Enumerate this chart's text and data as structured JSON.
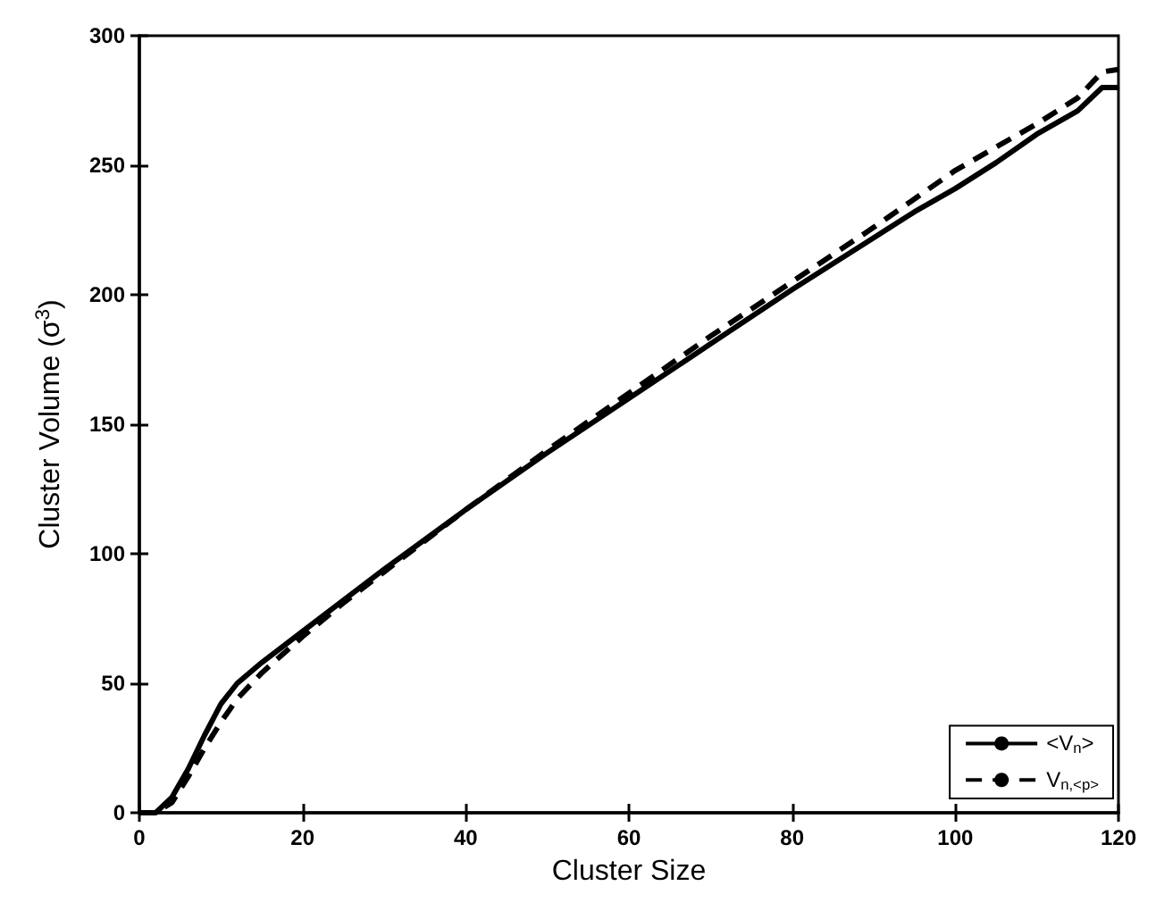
{
  "chart_data": {
    "type": "line",
    "xlabel": "Cluster Size",
    "ylabel": "Cluster Volume (σ$^{3}$)",
    "xlim": [
      0,
      120
    ],
    "xticks": [
      0,
      20,
      40,
      60,
      80,
      100,
      120
    ],
    "ylim": [
      0,
      300
    ],
    "yticks": [
      0,
      50,
      100,
      150,
      200,
      250,
      300
    ],
    "grid": false,
    "legend": "bottom right",
    "marker": "none",
    "series": [
      {
        "name": "<V$_{n}$>",
        "color": "#000000",
        "line_style": "solid",
        "x": [
          0,
          2,
          4,
          6,
          8,
          10,
          12,
          15,
          20,
          25,
          30,
          40,
          50,
          60,
          70,
          80,
          90,
          95,
          100,
          105,
          110,
          115,
          118,
          120
        ],
        "values": [
          0,
          0,
          6,
          17,
          30,
          42,
          50,
          58,
          70,
          82,
          94,
          117,
          139,
          160,
          181,
          202,
          222,
          232,
          241,
          251,
          262,
          271,
          280,
          280
        ]
      },
      {
        "name": "V$_{n,<p>}$",
        "color": "#000000",
        "line_style": "dashed",
        "x": [
          0,
          2,
          4,
          6,
          8,
          10,
          12,
          15,
          20,
          25,
          30,
          40,
          50,
          60,
          70,
          80,
          90,
          95,
          100,
          105,
          110,
          115,
          118,
          120
        ],
        "values": [
          0,
          0,
          4,
          14,
          25,
          35,
          44,
          54,
          68,
          81,
          93,
          117,
          140,
          162,
          184,
          205,
          226,
          237,
          248,
          257,
          266,
          276,
          286,
          287
        ]
      }
    ]
  }
}
